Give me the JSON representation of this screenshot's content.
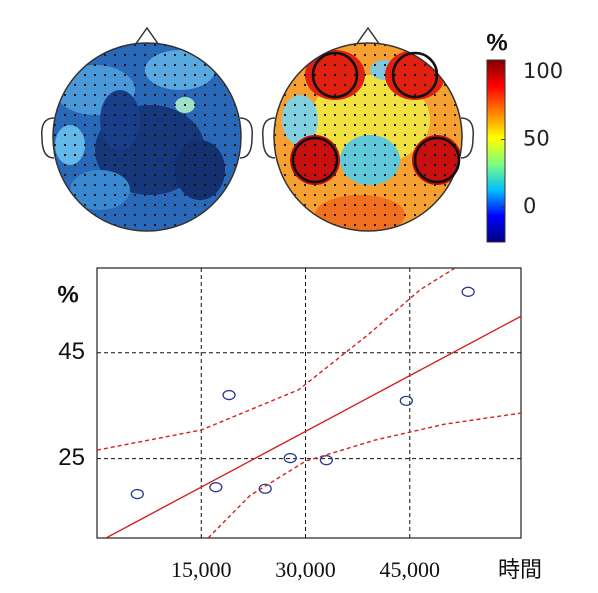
{
  "chart_data": [
    {
      "type": "colorbar",
      "label": "%",
      "clim": [
        -26,
        109
      ],
      "ticks": [
        0,
        50,
        100
      ],
      "colormap": [
        "#00007f",
        "#0000ff",
        "#00bfff",
        "#7fff7f",
        "#ffff00",
        "#ff7f00",
        "#ff0000",
        "#7f0000"
      ]
    },
    {
      "type": "scatter",
      "ylabel": "%",
      "xlabel": "時間",
      "xlim": [
        0,
        61000
      ],
      "ylim": [
        10,
        61
      ],
      "xticks": [
        {
          "value": 15000,
          "label": "15,000"
        },
        {
          "value": 30000,
          "label": "30,000"
        },
        {
          "value": 45000,
          "label": "45,000"
        }
      ],
      "yticks": [
        25,
        45
      ],
      "grid": true,
      "series": [
        {
          "style": "marker",
          "color": "#2a3a8a",
          "x": [
            5800,
            19000,
            17100,
            24200,
            27800,
            33000,
            44500,
            53400
          ],
          "values": [
            18.3,
            37.0,
            19.6,
            19.3,
            25.1,
            24.7,
            35.9,
            56.5
          ]
        },
        {
          "style": "line",
          "color": "#d42020",
          "x": [
            1300,
            61000
          ],
          "values": [
            10,
            51.9
          ]
        },
        {
          "style": "dashed",
          "color": "#d42020",
          "x": [
            0,
            15000,
            29000,
            39000,
            46500,
            51500
          ],
          "values": [
            26.6,
            30.4,
            38,
            48.4,
            56.9,
            61
          ]
        },
        {
          "style": "dashed",
          "color": "#d42020",
          "x": [
            16000,
            22000,
            30000,
            40000,
            50000,
            61000
          ],
          "values": [
            10,
            18,
            24.5,
            28.5,
            31.5,
            33.6
          ]
        }
      ]
    }
  ]
}
